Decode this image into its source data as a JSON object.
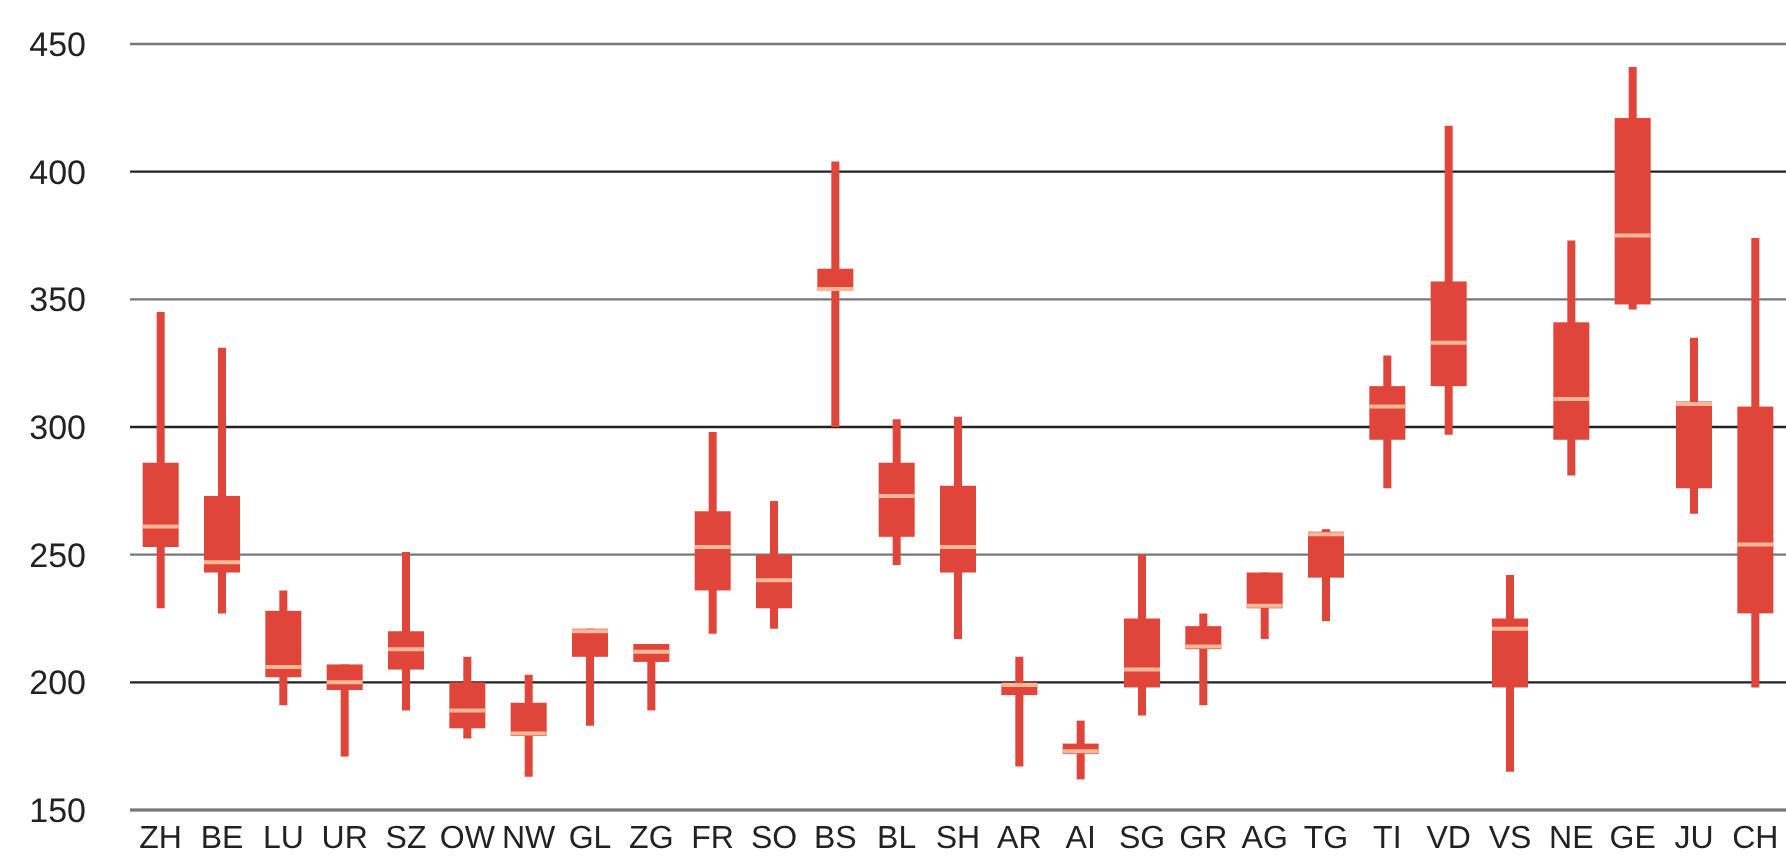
{
  "chart_data": {
    "type": "box",
    "categories": [
      "ZH",
      "BE",
      "LU",
      "UR",
      "SZ",
      "OW",
      "NW",
      "GL",
      "ZG",
      "FR",
      "SO",
      "BS",
      "BL",
      "SH",
      "AR",
      "AI",
      "SG",
      "GR",
      "AG",
      "TG",
      "TI",
      "VD",
      "VS",
      "NE",
      "GE",
      "JU",
      "CH"
    ],
    "color": "#e0453a",
    "ylim": [
      150,
      450
    ],
    "yticks": [
      150,
      200,
      250,
      300,
      350,
      400,
      450
    ],
    "grid": "y",
    "boxes": [
      {
        "low": 229,
        "q1": 253,
        "median": 261,
        "q3": 286,
        "high": 345
      },
      {
        "low": 227,
        "q1": 243,
        "median": 247,
        "q3": 273,
        "high": 331
      },
      {
        "low": 191,
        "q1": 202,
        "median": 206,
        "q3": 228,
        "high": 236
      },
      {
        "low": 171,
        "q1": 197,
        "median": 200,
        "q3": 207,
        "high": 207
      },
      {
        "low": 189,
        "q1": 205,
        "median": 213,
        "q3": 220,
        "high": 251
      },
      {
        "low": 178,
        "q1": 182,
        "median": 189,
        "q3": 200,
        "high": 210
      },
      {
        "low": 163,
        "q1": 179,
        "median": 180,
        "q3": 192,
        "high": 203
      },
      {
        "low": 183,
        "q1": 210,
        "median": 220,
        "q3": 221,
        "high": 221
      },
      {
        "low": 189,
        "q1": 208,
        "median": 212,
        "q3": 215,
        "high": 215
      },
      {
        "low": 219,
        "q1": 236,
        "median": 253,
        "q3": 267,
        "high": 298
      },
      {
        "low": 221,
        "q1": 229,
        "median": 240,
        "q3": 250,
        "high": 271
      },
      {
        "low": 300,
        "q1": 354,
        "median": 354,
        "q3": 362,
        "high": 404
      },
      {
        "low": 246,
        "q1": 257,
        "median": 273,
        "q3": 286,
        "high": 303
      },
      {
        "low": 217,
        "q1": 243,
        "median": 253,
        "q3": 277,
        "high": 304
      },
      {
        "low": 167,
        "q1": 195,
        "median": 199,
        "q3": 200,
        "high": 210
      },
      {
        "low": 162,
        "q1": 172,
        "median": 173,
        "q3": 176,
        "high": 185
      },
      {
        "low": 187,
        "q1": 198,
        "median": 205,
        "q3": 225,
        "high": 250
      },
      {
        "low": 191,
        "q1": 213,
        "median": 214,
        "q3": 222,
        "high": 227
      },
      {
        "low": 217,
        "q1": 229,
        "median": 230,
        "q3": 243,
        "high": 243
      },
      {
        "low": 224,
        "q1": 241,
        "median": 258,
        "q3": 259,
        "high": 260
      },
      {
        "low": 276,
        "q1": 295,
        "median": 308,
        "q3": 316,
        "high": 328
      },
      {
        "low": 297,
        "q1": 316,
        "median": 333,
        "q3": 357,
        "high": 418
      },
      {
        "low": 165,
        "q1": 198,
        "median": 221,
        "q3": 225,
        "high": 242
      },
      {
        "low": 281,
        "q1": 295,
        "median": 311,
        "q3": 341,
        "high": 373
      },
      {
        "low": 346,
        "q1": 348,
        "median": 375,
        "q3": 421,
        "high": 441
      },
      {
        "low": 266,
        "q1": 276,
        "median": 309,
        "q3": 310,
        "high": 335
      },
      {
        "low": 198,
        "q1": 227,
        "median": 254,
        "q3": 308,
        "high": 374
      }
    ]
  }
}
